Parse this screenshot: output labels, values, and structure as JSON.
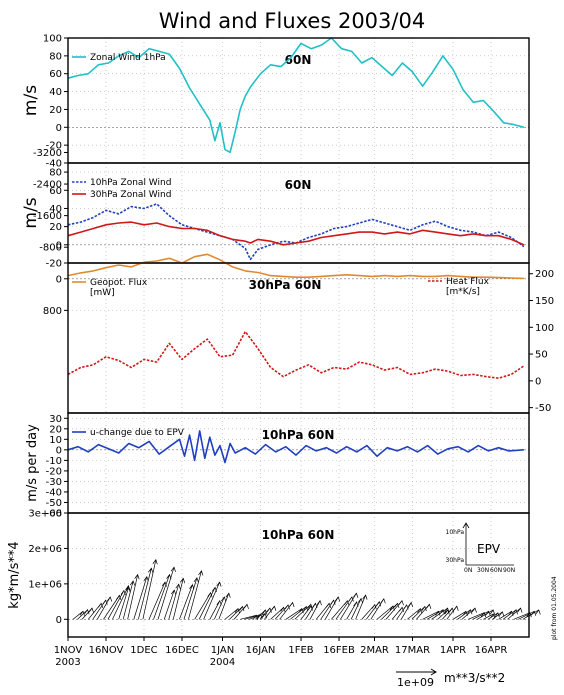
{
  "figure": {
    "title": "Wind and Fluxes 2003/04",
    "footnote": "plot from 01.05.2004",
    "colors": {
      "cyan": "#20c0c8",
      "blue": "#2040c0",
      "red": "#d01818",
      "orange": "#e08a30",
      "grid": "#b0b0b0",
      "zero": "#707070"
    }
  },
  "chart_data": [
    {
      "id": "panel1",
      "type": "line",
      "annotation": "60N",
      "ylabel": "m/s",
      "ylim": [
        -40,
        100
      ],
      "yticks": [
        "100",
        "80",
        "60",
        "40",
        "20",
        "0",
        "-20",
        "-40"
      ],
      "x_days": [
        0,
        4,
        8,
        12,
        16,
        20,
        24,
        28,
        32,
        36,
        40,
        44,
        48,
        52,
        56,
        58,
        60,
        62,
        64,
        66,
        68,
        70,
        72,
        76,
        80,
        84,
        88,
        92,
        96,
        100,
        104,
        108,
        112,
        116,
        120,
        124,
        128,
        132,
        136,
        140,
        144,
        148,
        152,
        156,
        160,
        164,
        168,
        172,
        176,
        180
      ],
      "series": [
        {
          "name": "Zonal Wind 1hPa",
          "color": "cyan",
          "style": "solid",
          "values": [
            55,
            58,
            60,
            70,
            72,
            80,
            85,
            78,
            88,
            85,
            82,
            66,
            44,
            26,
            8,
            -15,
            5,
            -25,
            -28,
            -5,
            20,
            35,
            45,
            60,
            70,
            68,
            78,
            94,
            88,
            92,
            100,
            88,
            85,
            72,
            78,
            68,
            58,
            72,
            62,
            46,
            62,
            80,
            65,
            42,
            28,
            30,
            18,
            5,
            3,
            0
          ]
        }
      ]
    },
    {
      "id": "panel2",
      "type": "line",
      "annotation": "60N",
      "ylabel": "m/s",
      "ylim": [
        -20,
        90
      ],
      "yticks": [
        "80",
        "60",
        "40",
        "20",
        "0",
        "-20"
      ],
      "x_days": [
        0,
        5,
        10,
        15,
        20,
        25,
        30,
        35,
        40,
        45,
        50,
        55,
        60,
        65,
        70,
        72,
        75,
        80,
        85,
        90,
        95,
        100,
        105,
        110,
        115,
        120,
        125,
        130,
        135,
        140,
        145,
        150,
        155,
        160,
        165,
        170,
        175,
        180
      ],
      "series": [
        {
          "name": "10hPa Zonal Wind",
          "color": "blue",
          "style": "dashed",
          "values": [
            22,
            25,
            30,
            38,
            34,
            42,
            40,
            45,
            32,
            22,
            18,
            14,
            10,
            6,
            -4,
            -16,
            -5,
            0,
            4,
            2,
            8,
            12,
            18,
            20,
            24,
            28,
            24,
            20,
            16,
            22,
            26,
            20,
            16,
            14,
            10,
            14,
            8,
            -2
          ]
        },
        {
          "name": "30hPa Zonal Wind",
          "color": "red",
          "style": "solid",
          "values": [
            10,
            14,
            18,
            22,
            24,
            25,
            22,
            24,
            20,
            18,
            18,
            16,
            10,
            6,
            4,
            2,
            6,
            4,
            0,
            2,
            4,
            8,
            10,
            12,
            14,
            14,
            12,
            14,
            12,
            16,
            14,
            12,
            10,
            12,
            10,
            10,
            6,
            0
          ]
        }
      ]
    },
    {
      "id": "panel3",
      "type": "line",
      "annotation": "30hPa 60N",
      "ylim": [
        -3400,
        400
      ],
      "yticks_left": [
        "-3200",
        "-2400",
        "-1600",
        "-800",
        "0",
        "800"
      ],
      "yticks_right": [
        "200",
        "150",
        "100",
        "50",
        "0",
        "-50"
      ],
      "x_days": [
        0,
        5,
        10,
        15,
        20,
        25,
        30,
        35,
        40,
        45,
        50,
        55,
        60,
        65,
        70,
        75,
        80,
        85,
        90,
        95,
        100,
        105,
        110,
        115,
        120,
        125,
        130,
        135,
        140,
        145,
        150,
        155,
        160,
        165,
        170,
        175,
        180
      ],
      "series": [
        {
          "name": "Geopot. Flux",
          "unit": "[mW]",
          "axis": "left",
          "color": "orange",
          "style": "solid",
          "values": [
            -80,
            -150,
            -200,
            -280,
            -350,
            -300,
            -420,
            -450,
            -520,
            -400,
            -560,
            -620,
            -480,
            -300,
            -200,
            -160,
            -80,
            -60,
            -40,
            -40,
            -60,
            -80,
            -100,
            -80,
            -60,
            -80,
            -60,
            -80,
            -60,
            -60,
            -80,
            -60,
            -40,
            -40,
            -30,
            -20,
            -10
          ]
        },
        {
          "name": "Heat Flux",
          "unit": "[m*K/s]",
          "axis": "right",
          "color": "red",
          "style": "dashed",
          "values": [
            12,
            25,
            30,
            45,
            38,
            25,
            40,
            35,
            70,
            40,
            60,
            78,
            45,
            48,
            92,
            60,
            25,
            8,
            20,
            30,
            15,
            25,
            22,
            35,
            30,
            20,
            25,
            12,
            15,
            22,
            18,
            10,
            12,
            8,
            5,
            12,
            28
          ]
        }
      ]
    },
    {
      "id": "panel4",
      "type": "line",
      "annotation": "10hPa 60N",
      "ylabel": "m/s per day",
      "ylim": [
        -60,
        35
      ],
      "yticks": [
        "30",
        "20",
        "10",
        "0",
        "-10",
        "-20",
        "-30",
        "-40",
        "-50",
        "-60"
      ],
      "x_days": [
        0,
        4,
        8,
        12,
        16,
        20,
        24,
        28,
        32,
        36,
        40,
        44,
        46,
        48,
        50,
        52,
        54,
        56,
        58,
        60,
        62,
        64,
        66,
        70,
        74,
        78,
        82,
        86,
        90,
        94,
        98,
        102,
        106,
        110,
        114,
        118,
        122,
        126,
        130,
        134,
        138,
        142,
        146,
        150,
        154,
        158,
        162,
        166,
        170,
        174,
        180
      ],
      "series": [
        {
          "name": "u-change due to EPV",
          "color": "blue",
          "style": "solid",
          "values": [
            0,
            3,
            -2,
            5,
            1,
            -3,
            6,
            2,
            8,
            -4,
            3,
            10,
            -6,
            14,
            -10,
            18,
            -8,
            12,
            -5,
            4,
            -12,
            6,
            -3,
            2,
            -4,
            5,
            -2,
            3,
            -5,
            4,
            -1,
            2,
            -3,
            3,
            -2,
            4,
            -6,
            2,
            -1,
            3,
            -2,
            4,
            -4,
            1,
            3,
            -2,
            4,
            -1,
            2,
            -1,
            0
          ]
        }
      ]
    },
    {
      "id": "panel5",
      "type": "quiver",
      "annotation": "10hPa 60N",
      "ylabel": "kg*m/s**4",
      "ylim": [
        -500000,
        3000000
      ],
      "yticks": [
        "3e+06",
        "2e+06",
        "1e+06",
        "0"
      ],
      "x_days": [
        2,
        8,
        14,
        20,
        26,
        32,
        38,
        44,
        50,
        56,
        62,
        68,
        74,
        80,
        86,
        92,
        98,
        104,
        110,
        116,
        122,
        128,
        134,
        140,
        146,
        152,
        158,
        164,
        170,
        176
      ],
      "magnitudes": [
        300000,
        600000,
        900000,
        1200000,
        1600000,
        1400000,
        1100000,
        1300000,
        1000000,
        700000,
        400000,
        150000,
        350000,
        450000,
        400000,
        500000,
        600000,
        700000,
        650000,
        550000,
        500000,
        450000,
        400000,
        300000,
        350000,
        300000,
        250000,
        200000,
        300000,
        250000
      ],
      "inset_label": "EPV",
      "inset_yticks": [
        "10hPa",
        "30hPa"
      ],
      "inset_xticks": [
        "0N",
        "30N",
        "60N",
        "90N"
      ],
      "reference_label": "1e+09",
      "reference_unit": "m**3/s**2"
    }
  ],
  "xaxis": {
    "ticks": [
      {
        "day": 0,
        "label": "1NOV",
        "sub": "2003"
      },
      {
        "day": 15,
        "label": "16NOV",
        "sub": ""
      },
      {
        "day": 30,
        "label": "1DEC",
        "sub": ""
      },
      {
        "day": 45,
        "label": "16DEC",
        "sub": ""
      },
      {
        "day": 61,
        "label": "1JAN",
        "sub": "2004"
      },
      {
        "day": 76,
        "label": "16JAN",
        "sub": ""
      },
      {
        "day": 92,
        "label": "1FEB",
        "sub": ""
      },
      {
        "day": 107,
        "label": "16FEB",
        "sub": ""
      },
      {
        "day": 121,
        "label": "2MAR",
        "sub": ""
      },
      {
        "day": 136,
        "label": "17MAR",
        "sub": ""
      },
      {
        "day": 152,
        "label": "1APR",
        "sub": ""
      },
      {
        "day": 167,
        "label": "16APR",
        "sub": ""
      }
    ],
    "range_days": [
      0,
      182
    ]
  }
}
